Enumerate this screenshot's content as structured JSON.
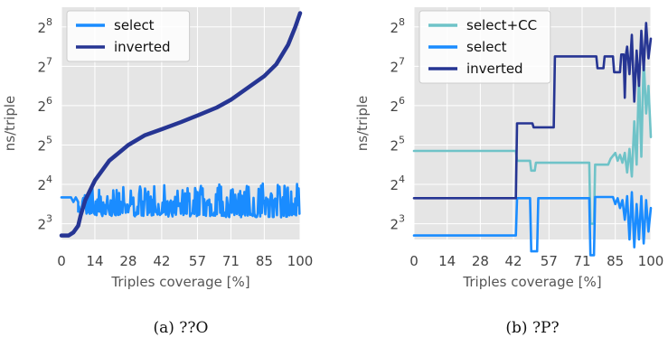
{
  "chart_data": [
    {
      "type": "line",
      "caption": "(a) ??O",
      "xlabel": "Triples coverage [%]",
      "ylabel": "ns/triple",
      "xlim": [
        0,
        100
      ],
      "ylim_log2": [
        2.6,
        8.5
      ],
      "x_ticks": [
        0,
        14,
        28,
        42,
        57,
        71,
        85,
        100
      ],
      "y_ticks_log2": [
        3,
        4,
        5,
        6,
        7,
        8
      ],
      "y_tick_base": "2",
      "grid": true,
      "legend_position": "upper-left",
      "series": [
        {
          "name": "select",
          "color": "#1a8cff",
          "noisy_from": 7,
          "x": [
            0,
            4,
            5,
            6,
            7,
            100
          ],
          "y_log2": [
            3.67,
            3.67,
            3.55,
            3.67,
            3.55,
            3.55
          ],
          "upper_log2": [
            3.67,
            3.67,
            3.55,
            3.67,
            3.95,
            4.05
          ],
          "lower_log2": [
            3.67,
            3.67,
            3.55,
            3.67,
            3.2,
            3.15
          ]
        },
        {
          "name": "inverted",
          "color": "#263593",
          "x": [
            0,
            3,
            5,
            7,
            8,
            10,
            14,
            20,
            28,
            35,
            42,
            50,
            57,
            65,
            71,
            78,
            85,
            90,
            95,
            98,
            100
          ],
          "y_log2": [
            2.7,
            2.7,
            2.78,
            2.95,
            3.2,
            3.6,
            4.1,
            4.6,
            5.0,
            5.25,
            5.4,
            5.58,
            5.75,
            5.95,
            6.15,
            6.45,
            6.75,
            7.05,
            7.55,
            8.0,
            8.35
          ]
        }
      ]
    },
    {
      "type": "line",
      "caption": "(b) ?P?",
      "xlabel": "Triples coverage [%]",
      "ylabel": "ns/triple",
      "xlim": [
        0,
        100
      ],
      "ylim_log2": [
        2.6,
        8.5
      ],
      "x_ticks": [
        0,
        14,
        28,
        42,
        57,
        71,
        85,
        100
      ],
      "y_ticks_log2": [
        3,
        4,
        5,
        6,
        7,
        8
      ],
      "y_tick_base": "2",
      "grid": true,
      "legend_position": "upper-left",
      "series": [
        {
          "name": "select+CC",
          "color": "#6fc3c8",
          "x": [
            0,
            43,
            43.5,
            49,
            49.5,
            51,
            51.5,
            74,
            74.5,
            76,
            76.5,
            82,
            83,
            85,
            86,
            87,
            88,
            89,
            90,
            91,
            92,
            93,
            94,
            95,
            96,
            97,
            98,
            99,
            100
          ],
          "y_log2": [
            4.85,
            4.85,
            4.6,
            4.6,
            4.35,
            4.35,
            4.55,
            4.55,
            3.0,
            3.0,
            4.5,
            4.5,
            4.65,
            4.8,
            4.6,
            4.75,
            4.55,
            4.8,
            4.3,
            4.9,
            4.2,
            5.6,
            4.5,
            6.8,
            4.7,
            7.2,
            5.8,
            6.5,
            5.2
          ]
        },
        {
          "name": "select",
          "color": "#1a8cff",
          "x": [
            0,
            43,
            43.5,
            49,
            49.5,
            52,
            52.5,
            74,
            74.5,
            76,
            76.5,
            84,
            85,
            86,
            87,
            88,
            89,
            90,
            91,
            92,
            93,
            94,
            95,
            96,
            97,
            98,
            99,
            100
          ],
          "y_log2": [
            2.7,
            2.7,
            3.65,
            3.65,
            2.3,
            2.3,
            3.65,
            3.65,
            2.2,
            2.2,
            3.68,
            3.68,
            3.5,
            3.65,
            3.4,
            3.6,
            3.1,
            3.7,
            2.6,
            3.8,
            2.4,
            3.5,
            2.6,
            3.7,
            2.5,
            3.6,
            2.8,
            3.4
          ]
        },
        {
          "name": "inverted",
          "color": "#263593",
          "x": [
            0,
            43,
            43.5,
            50,
            50.5,
            59,
            59.5,
            77,
            77.5,
            80,
            80.5,
            84,
            84.5,
            87,
            87.5,
            88.5,
            89,
            89.5,
            90,
            91,
            92,
            93,
            94,
            95,
            96,
            97,
            98,
            99,
            100
          ],
          "y_log2": [
            3.65,
            3.65,
            5.55,
            5.55,
            5.45,
            5.45,
            7.25,
            7.25,
            6.95,
            6.95,
            7.25,
            7.25,
            6.85,
            6.85,
            7.3,
            7.3,
            6.2,
            7.3,
            7.5,
            6.8,
            7.8,
            6.1,
            7.4,
            6.5,
            7.9,
            6.9,
            8.1,
            7.2,
            7.7
          ]
        }
      ]
    }
  ]
}
